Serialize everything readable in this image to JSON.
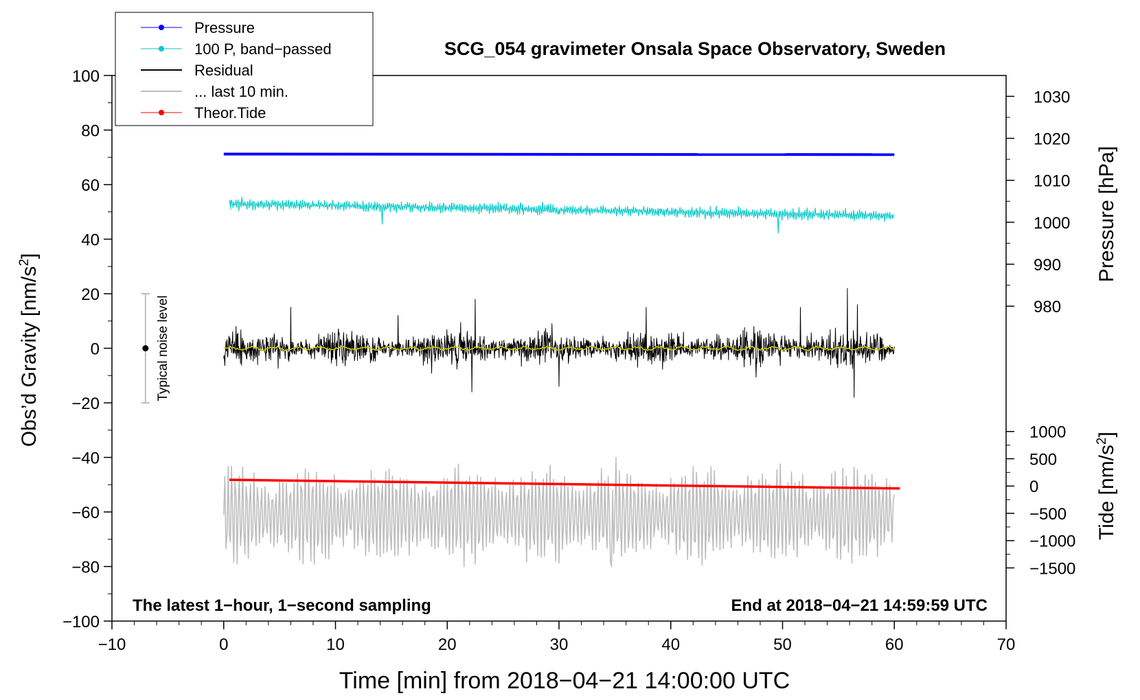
{
  "chart_data": {
    "type": "line",
    "title": "SCG_054 gravimeter Onsala Space Observatory, Sweden",
    "xlabel": "Time [min] from 2018−04−21 14:00:00 UTC",
    "ylabel_left_main": "Obs’d Gravity [nm/s",
    "ylabel_left_sup": "2",
    "ylabel_left_end": "]",
    "ylabel_right_top": "Pressure [hPa]",
    "ylabel_right_bottom_main": "Tide [nm/s",
    "ylabel_right_bottom_sup": "2",
    "ylabel_right_bottom_end": "]",
    "note_left": "The latest 1−hour, 1−second sampling",
    "note_right": "End at 2018−04−21 14:59:59 UTC",
    "noise_label": "Typical noise level",
    "xlim": [
      -10,
      70
    ],
    "ylim": [
      -100,
      100
    ],
    "xticks": [
      -10,
      0,
      10,
      20,
      30,
      40,
      50,
      60,
      70
    ],
    "xtick_labels": [
      "−10",
      "0",
      "10",
      "20",
      "30",
      "40",
      "50",
      "60",
      "70"
    ],
    "yticks": [
      -100,
      -80,
      -60,
      -40,
      -20,
      0,
      20,
      40,
      60,
      80,
      100
    ],
    "ytick_labels": [
      "−100",
      "−80",
      "−60",
      "−40",
      "−20",
      "0",
      "20",
      "40",
      "60",
      "80",
      "100"
    ],
    "pressure_axis": {
      "ticks": [
        980,
        990,
        1000,
        1010,
        1020,
        1030
      ],
      "labels": [
        "980",
        "990",
        "1000",
        "1010",
        "1020",
        "1030"
      ],
      "ref_value": 1000,
      "ref_y": 46.2,
      "units_per_gravity": 0.65
    },
    "tide_axis": {
      "ticks": [
        -1500,
        -1000,
        -500,
        0,
        500,
        1000
      ],
      "labels": [
        "−1500",
        "−1000",
        "−500",
        "0",
        "500",
        "1000"
      ],
      "ref_value": 0,
      "ref_y": -50.5,
      "units_per_gravity": 0.02
    },
    "legend": [
      {
        "label": "Pressure",
        "color": "#0000ff",
        "marker": true
      },
      {
        "label": "100 P, band−passed",
        "color": "#00c8c8",
        "marker": true
      },
      {
        "label": "Residual",
        "color": "#000000",
        "marker": false
      },
      {
        "label": "... last 10 min.",
        "color": "#bebebe",
        "marker": false
      },
      {
        "label": "Theor.Tide",
        "color": "#ff0000",
        "marker": true
      }
    ],
    "series": [
      {
        "name": "Pressure",
        "color": "#0000ff",
        "x": [
          0,
          60
        ],
        "y": [
          71.2,
          71.0
        ]
      },
      {
        "name": "100 P, band-passed",
        "color": "#00c8c8",
        "x_range": [
          0.5,
          60
        ],
        "baseline": [
          53,
          48.5
        ],
        "amplitude": 1.8
      },
      {
        "name": "Residual",
        "color": "#000000",
        "x_range": [
          0,
          60
        ],
        "baseline": 0,
        "amplitude": 15
      },
      {
        "name": "Residual smoothed",
        "color": "#c8c800",
        "x_range": [
          0,
          60
        ],
        "baseline": 0,
        "amplitude": 1
      },
      {
        "name": "... last 10 min.",
        "color": "#bebebe",
        "x_range": [
          0,
          60
        ],
        "baseline": -61,
        "amplitude": 18
      },
      {
        "name": "Theor.Tide",
        "color": "#ff0000",
        "x": [
          0.5,
          60.5
        ],
        "y": [
          -48.2,
          -51.4
        ]
      }
    ],
    "noise_bar": {
      "x": -7,
      "y_min": -20,
      "y_max": 20,
      "center": 0
    }
  }
}
